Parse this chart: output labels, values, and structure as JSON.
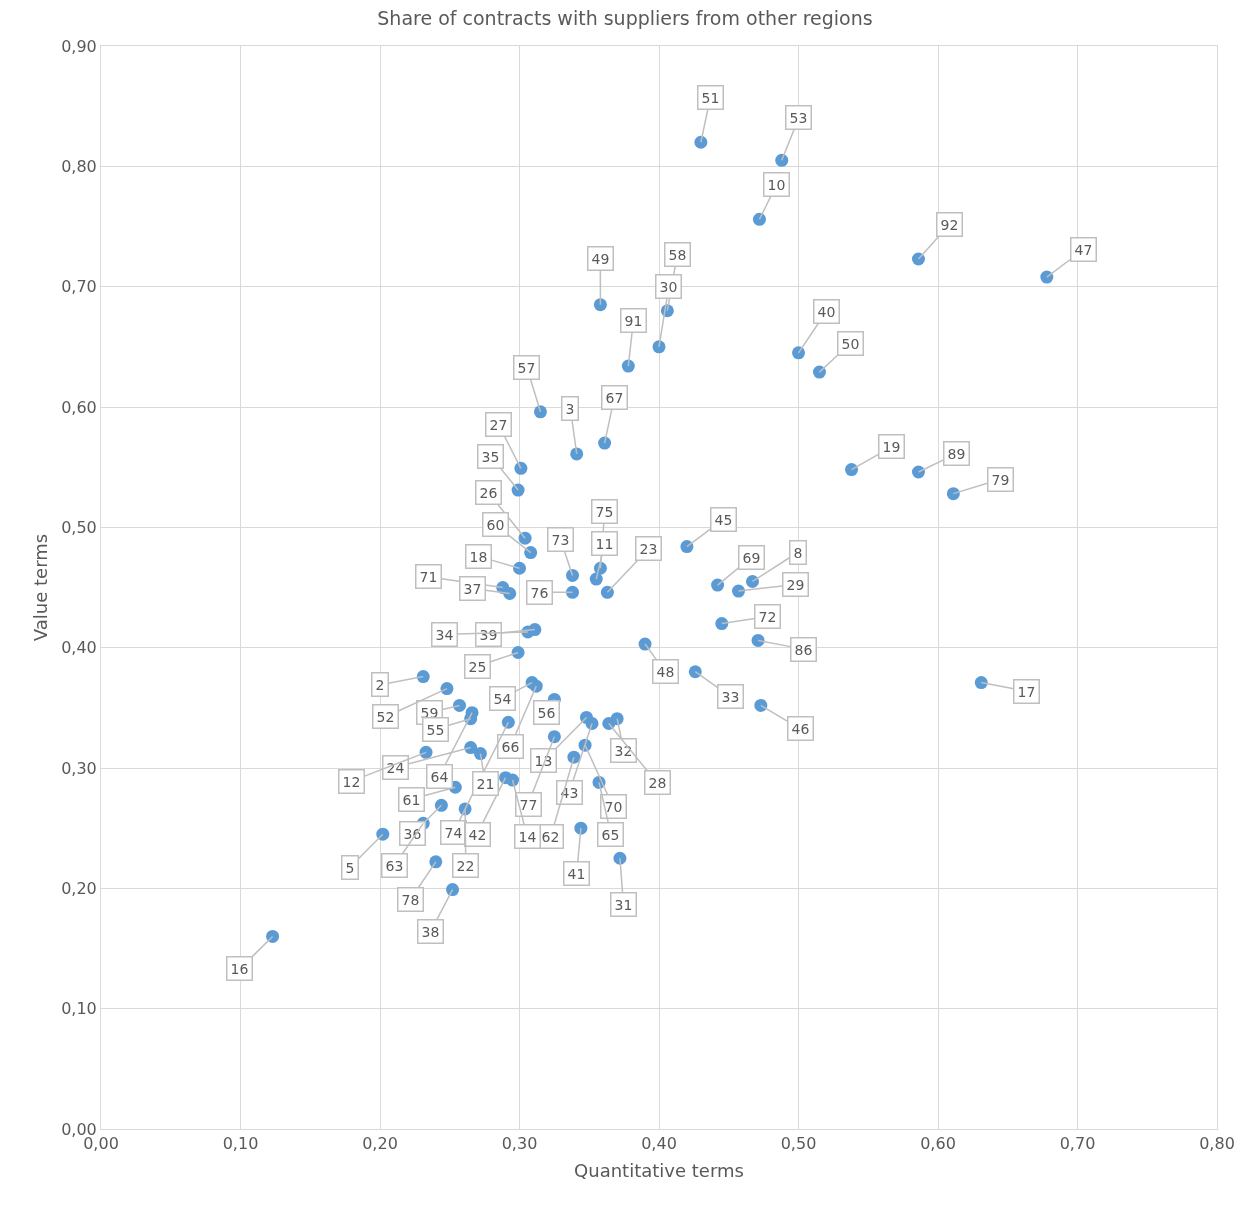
{
  "chart_data": {
    "type": "scatter",
    "title": "Share of contracts with suppliers from other regions",
    "xlabel": "Quantitative terms",
    "ylabel": "Value terms",
    "series": [
      {
        "name": "51",
        "x": [
          0.43
        ],
        "values": [
          0.82
        ]
      },
      {
        "name": "53",
        "x": [
          0.488
        ],
        "values": [
          0.805
        ]
      },
      {
        "name": "10",
        "x": [
          0.472
        ],
        "values": [
          0.756
        ]
      },
      {
        "name": "92",
        "x": [
          0.586
        ],
        "values": [
          0.723
        ]
      },
      {
        "name": "47",
        "x": [
          0.678
        ],
        "values": [
          0.708
        ]
      },
      {
        "name": "49",
        "x": [
          0.358
        ],
        "values": [
          0.685
        ]
      },
      {
        "name": "58",
        "x": [
          0.406
        ],
        "values": [
          0.68
        ]
      },
      {
        "name": "30",
        "x": [
          0.4
        ],
        "values": [
          0.65
        ]
      },
      {
        "name": "91",
        "x": [
          0.378
        ],
        "values": [
          0.634
        ]
      },
      {
        "name": "40",
        "x": [
          0.5
        ],
        "values": [
          0.645
        ]
      },
      {
        "name": "50",
        "x": [
          0.515
        ],
        "values": [
          0.629
        ]
      },
      {
        "name": "57",
        "x": [
          0.315
        ],
        "values": [
          0.596
        ]
      },
      {
        "name": "67",
        "x": [
          0.361
        ],
        "values": [
          0.57
        ]
      },
      {
        "name": "3",
        "x": [
          0.341
        ],
        "values": [
          0.561
        ]
      },
      {
        "name": "27",
        "x": [
          0.301
        ],
        "values": [
          0.549
        ]
      },
      {
        "name": "35",
        "x": [
          0.299
        ],
        "values": [
          0.531
        ]
      },
      {
        "name": "19",
        "x": [
          0.538
        ],
        "values": [
          0.548
        ]
      },
      {
        "name": "89",
        "x": [
          0.586
        ],
        "values": [
          0.546
        ]
      },
      {
        "name": "79",
        "x": [
          0.611
        ],
        "values": [
          0.528
        ]
      },
      {
        "name": "45",
        "x": [
          0.42
        ],
        "values": [
          0.484
        ]
      },
      {
        "name": "26",
        "x": [
          0.304
        ],
        "values": [
          0.491
        ]
      },
      {
        "name": "60",
        "x": [
          0.308
        ],
        "values": [
          0.479
        ]
      },
      {
        "name": "18",
        "x": [
          0.3
        ],
        "values": [
          0.466
        ]
      },
      {
        "name": "73",
        "x": [
          0.338
        ],
        "values": [
          0.46
        ]
      },
      {
        "name": "75",
        "x": [
          0.358
        ],
        "values": [
          0.466
        ]
      },
      {
        "name": "11",
        "x": [
          0.355
        ],
        "values": [
          0.457
        ]
      },
      {
        "name": "69",
        "x": [
          0.442
        ],
        "values": [
          0.452
        ]
      },
      {
        "name": "8",
        "x": [
          0.467
        ],
        "values": [
          0.455
        ]
      },
      {
        "name": "29",
        "x": [
          0.457
        ],
        "values": [
          0.447
        ]
      },
      {
        "name": "23",
        "x": [
          0.363
        ],
        "values": [
          0.446
        ]
      },
      {
        "name": "76",
        "x": [
          0.338
        ],
        "values": [
          0.446
        ]
      },
      {
        "name": "71",
        "x": [
          0.288
        ],
        "values": [
          0.45
        ]
      },
      {
        "name": "37",
        "x": [
          0.293
        ],
        "values": [
          0.445
        ]
      },
      {
        "name": "72",
        "x": [
          0.445
        ],
        "values": [
          0.42
        ]
      },
      {
        "name": "86",
        "x": [
          0.471
        ],
        "values": [
          0.406
        ]
      },
      {
        "name": "48",
        "x": [
          0.39
        ],
        "values": [
          0.403
        ]
      },
      {
        "name": "39",
        "x": [
          0.311
        ],
        "values": [
          0.415
        ]
      },
      {
        "name": "34",
        "x": [
          0.306
        ],
        "values": [
          0.413
        ]
      },
      {
        "name": "25",
        "x": [
          0.299
        ],
        "values": [
          0.396
        ]
      },
      {
        "name": "66",
        "x": [
          0.312
        ],
        "values": [
          0.368
        ]
      },
      {
        "name": "54",
        "x": [
          0.309
        ],
        "values": [
          0.371
        ]
      },
      {
        "name": "56",
        "x": [
          0.325
        ],
        "values": [
          0.357
        ]
      },
      {
        "name": "33",
        "x": [
          0.426
        ],
        "values": [
          0.38
        ]
      },
      {
        "name": "13",
        "x": [
          0.348
        ],
        "values": [
          0.342
        ]
      },
      {
        "name": "46",
        "x": [
          0.473
        ],
        "values": [
          0.352
        ]
      },
      {
        "name": "17",
        "x": [
          0.631
        ],
        "values": [
          0.371
        ]
      },
      {
        "name": "32",
        "x": [
          0.37
        ],
        "values": [
          0.341
        ]
      },
      {
        "name": "28",
        "x": [
          0.364
        ],
        "values": [
          0.337
        ]
      },
      {
        "name": "43",
        "x": [
          0.352
        ],
        "values": [
          0.337
        ]
      },
      {
        "name": "70",
        "x": [
          0.347
        ],
        "values": [
          0.319
        ]
      },
      {
        "name": "62",
        "x": [
          0.339
        ],
        "values": [
          0.309
        ]
      },
      {
        "name": "65",
        "x": [
          0.357
        ],
        "values": [
          0.288
        ]
      },
      {
        "name": "41",
        "x": [
          0.344
        ],
        "values": [
          0.25
        ]
      },
      {
        "name": "31",
        "x": [
          0.372
        ],
        "values": [
          0.225
        ]
      },
      {
        "name": "74",
        "x": [
          0.292
        ],
        "values": [
          0.338
        ]
      },
      {
        "name": "77",
        "x": [
          0.325
        ],
        "values": [
          0.326
        ]
      },
      {
        "name": "14",
        "x": [
          0.295
        ],
        "values": [
          0.29
        ]
      },
      {
        "name": "42",
        "x": [
          0.29
        ],
        "values": [
          0.292
        ]
      },
      {
        "name": "61",
        "x": [
          0.254
        ],
        "values": [
          0.284
        ]
      },
      {
        "name": "22",
        "x": [
          0.261
        ],
        "values": [
          0.266
        ]
      },
      {
        "name": "36",
        "x": [
          0.244
        ],
        "values": [
          0.269
        ]
      },
      {
        "name": "21",
        "x": [
          0.272
        ],
        "values": [
          0.312
        ]
      },
      {
        "name": "24",
        "x": [
          0.265
        ],
        "values": [
          0.317
        ]
      },
      {
        "name": "12",
        "x": [
          0.233
        ],
        "values": [
          0.313
        ]
      },
      {
        "name": "63",
        "x": [
          0.231
        ],
        "values": [
          0.254
        ]
      },
      {
        "name": "5",
        "x": [
          0.202
        ],
        "values": [
          0.245
        ]
      },
      {
        "name": "78",
        "x": [
          0.24
        ],
        "values": [
          0.222
        ]
      },
      {
        "name": "38",
        "x": [
          0.252
        ],
        "values": [
          0.199
        ]
      },
      {
        "name": "16",
        "x": [
          0.123
        ],
        "values": [
          0.16
        ]
      },
      {
        "name": "59",
        "x": [
          0.257
        ],
        "values": [
          0.352
        ]
      },
      {
        "name": "64",
        "x": [
          0.266
        ],
        "values": [
          0.346
        ]
      },
      {
        "name": "55",
        "x": [
          0.265
        ],
        "values": [
          0.341
        ]
      },
      {
        "name": "2",
        "x": [
          0.231
        ],
        "values": [
          0.376
        ]
      },
      {
        "name": "52",
        "x": [
          0.248
        ],
        "values": [
          0.366
        ]
      }
    ],
    "color": "#5b9bd5",
    "marker": "circle",
    "xlim": [
      0,
      0.8
    ],
    "xticks": [
      {
        "value": 0,
        "label": "0,00"
      },
      {
        "value": 0.1,
        "label": "0,10"
      },
      {
        "value": 0.2,
        "label": "0,20"
      },
      {
        "value": 0.3,
        "label": "0,30"
      },
      {
        "value": 0.4,
        "label": "0,40"
      },
      {
        "value": 0.5,
        "label": "0,50"
      },
      {
        "value": 0.6,
        "label": "0,60"
      },
      {
        "value": 0.7,
        "label": "0,70"
      },
      {
        "value": 0.8,
        "label": "0,80"
      }
    ],
    "ylim": [
      0,
      0.9
    ],
    "yticks": [
      {
        "value": 0,
        "label": "0,00"
      },
      {
        "value": 0.1,
        "label": "0,10"
      },
      {
        "value": 0.2,
        "label": "0,20"
      },
      {
        "value": 0.3,
        "label": "0,30"
      },
      {
        "value": 0.4,
        "label": "0,40"
      },
      {
        "value": 0.5,
        "label": "0,50"
      },
      {
        "value": 0.6,
        "label": "0,60"
      },
      {
        "value": 0.7,
        "label": "0,70"
      },
      {
        "value": 0.8,
        "label": "0,80"
      },
      {
        "value": 0.9,
        "label": "0,90"
      }
    ],
    "grid": true
  }
}
